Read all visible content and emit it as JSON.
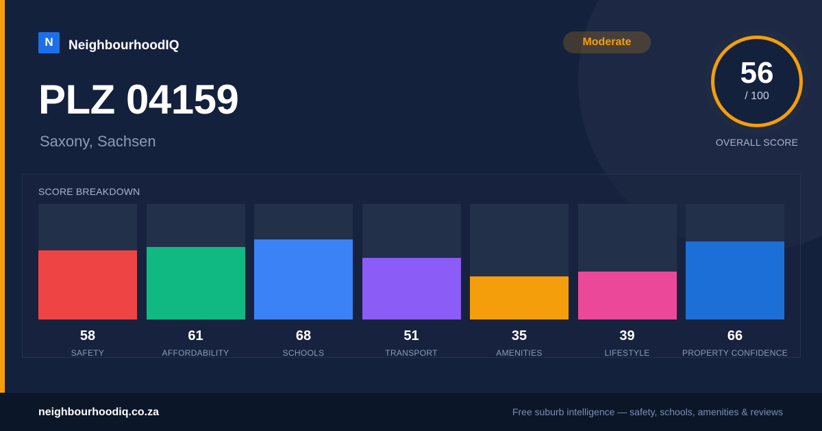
{
  "brand": {
    "logo_letter": "N",
    "name": "NeighbourhoodIQ"
  },
  "header": {
    "title": "PLZ 04159",
    "subtitle": "Saxony, Sachsen",
    "badge": "Moderate"
  },
  "overall": {
    "score": "56",
    "max": "/ 100",
    "caption": "OVERALL SCORE"
  },
  "breakdown": {
    "title": "SCORE BREAKDOWN",
    "items": [
      {
        "label": "SAFETY",
        "value": "58",
        "score": 58,
        "color": "#ef4444"
      },
      {
        "label": "AFFORDABILITY",
        "value": "61",
        "score": 61,
        "color": "#10b981"
      },
      {
        "label": "SCHOOLS",
        "value": "68",
        "score": 68,
        "color": "#3b82f6"
      },
      {
        "label": "TRANSPORT",
        "value": "51",
        "score": 51,
        "color": "#8b5cf6"
      },
      {
        "label": "AMENITIES",
        "value": "35",
        "score": 35,
        "color": "#f59e0b"
      },
      {
        "label": "LIFESTYLE",
        "value": "39",
        "score": 39,
        "color": "#ec4899"
      },
      {
        "label": "PROPERTY CONFIDENCE",
        "value": "66",
        "score": 66,
        "color": "#1d6fd8"
      }
    ]
  },
  "footer": {
    "site": "neighbourhoodiq.co.za",
    "tagline": "Free suburb intelligence — safety, schools, amenities & reviews"
  }
}
